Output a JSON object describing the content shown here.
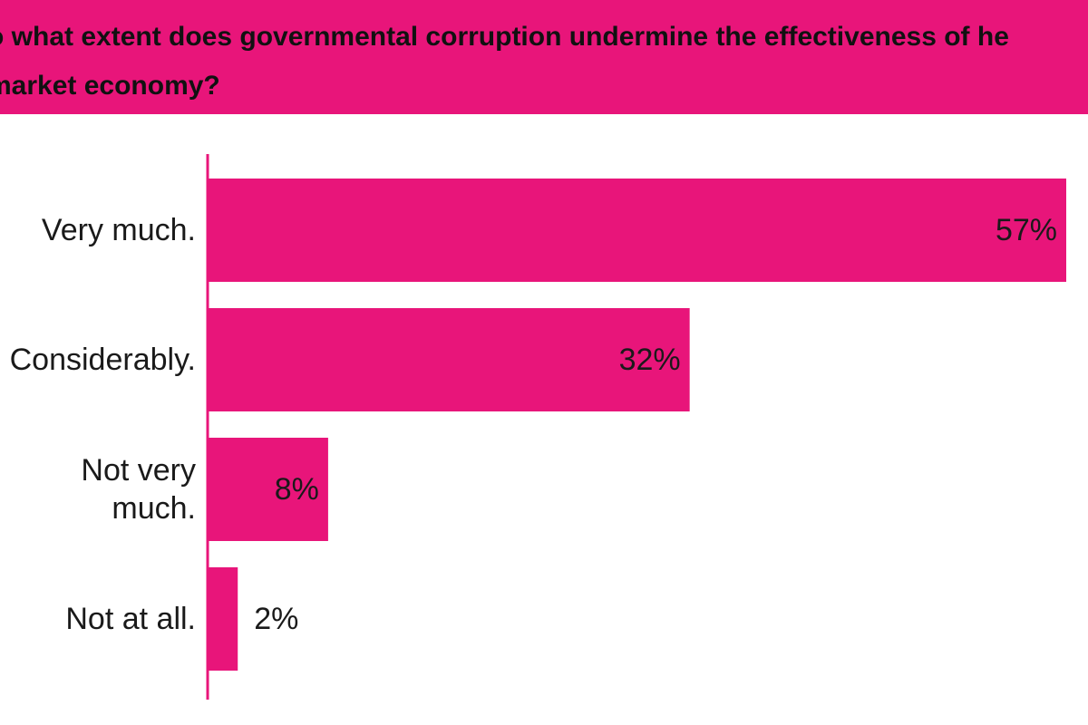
{
  "header": {
    "title": "o what extent does governmental corruption undermine the effectiveness of he market economy?"
  },
  "colors": {
    "accent": "#e8157a",
    "text": "#1a1a1a"
  },
  "chart_data": {
    "type": "bar",
    "orientation": "horizontal",
    "title": "o what extent does governmental corruption undermine the effectiveness of he market economy?",
    "categories": [
      "Very much.",
      "Considerably.",
      "Not very much.",
      "Not at all."
    ],
    "category_lines": [
      [
        "Very much."
      ],
      [
        "Considerably."
      ],
      [
        "Not very",
        "much."
      ],
      [
        "Not at all."
      ]
    ],
    "values": [
      57,
      32,
      8,
      2
    ],
    "value_labels": [
      "57%",
      "32%",
      "8%",
      "2%"
    ],
    "unit": "%",
    "xlim": [
      0,
      57
    ],
    "grid": false,
    "legend": "none"
  }
}
